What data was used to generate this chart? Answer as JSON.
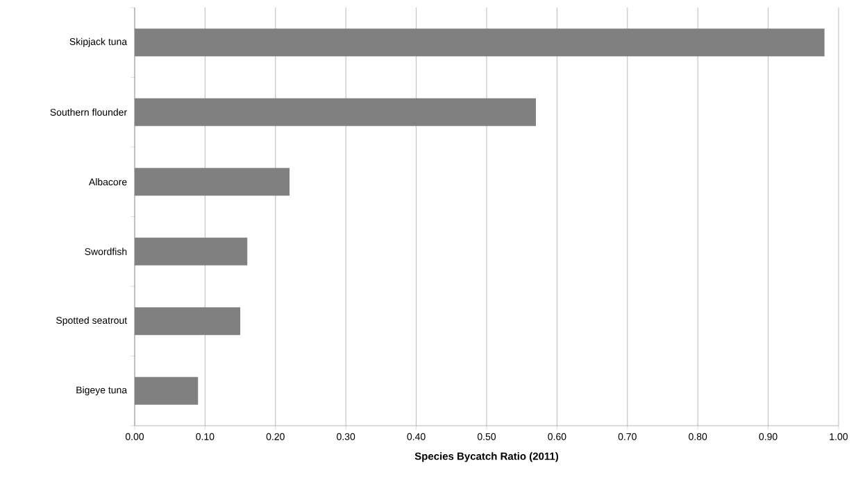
{
  "chart_data": {
    "type": "bar",
    "orientation": "horizontal",
    "categories": [
      "Skipjack tuna",
      "Southern flounder",
      "Albacore",
      "Swordfish",
      "Spotted seatrout",
      "Bigeye tuna"
    ],
    "values": [
      0.98,
      0.57,
      0.22,
      0.16,
      0.15,
      0.09
    ],
    "color": "#808080",
    "xlabel": "**Species Bycatch Ratio (2011)**",
    "xlim": [
      0,
      1
    ],
    "xticks": [
      {
        "value": 0,
        "label": "0.00"
      },
      {
        "value": 0.1,
        "label": "0.10"
      },
      {
        "value": 0.2,
        "label": "0.20"
      },
      {
        "value": 0.3,
        "label": "0.30"
      },
      {
        "value": 0.4,
        "label": "0.40"
      },
      {
        "value": 0.5,
        "label": "0.50"
      },
      {
        "value": 0.6,
        "label": "0.60"
      },
      {
        "value": 0.7,
        "label": "0.70"
      },
      {
        "value": 0.8,
        "label": "0.80"
      },
      {
        "value": 0.9,
        "label": "0.90"
      },
      {
        "value": 1,
        "label": "1.00"
      }
    ],
    "grid": "x"
  }
}
